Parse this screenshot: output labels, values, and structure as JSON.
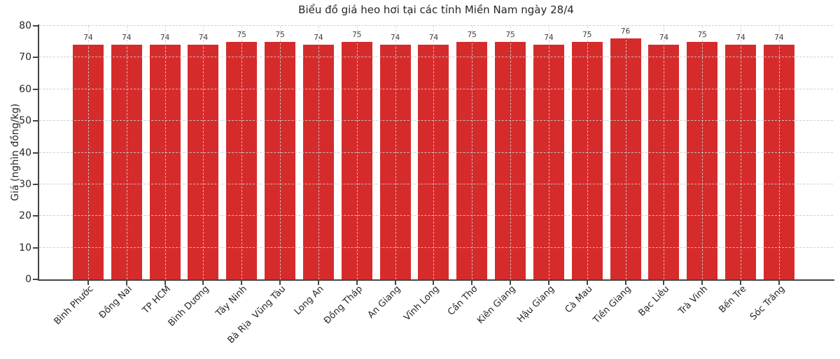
{
  "chart_data": {
    "type": "bar",
    "title": "Biểu đồ giá heo hơi tại các tỉnh Miền Nam ngày 28/4",
    "xlabel": "",
    "ylabel": "Giá (nghìn đồng/kg)",
    "categories": [
      "Bình Phước",
      "Đồng Nai",
      "TP HCM",
      "Bình Dương",
      "Tây Ninh",
      "Bà Rịa  Vũng Tàu",
      "Long An",
      "Đồng Tháp",
      "An Giang",
      "Vĩnh Long",
      "Cần Thơ",
      "Kiên Giang",
      "Hậu Giang",
      "Cà Mau",
      "Tiền Giang",
      "Bạc Liêu",
      "Trà Vinh",
      "Bến Tre",
      "Sóc Trăng"
    ],
    "values": [
      74,
      74,
      74,
      74,
      75,
      75,
      74,
      75,
      74,
      74,
      75,
      75,
      74,
      75,
      76,
      74,
      75,
      74,
      74
    ],
    "ylim": [
      0,
      80
    ],
    "yticks": [
      0,
      10,
      20,
      30,
      40,
      50,
      60,
      70,
      80
    ],
    "x_tick_rotation_deg": 45,
    "grid": {
      "visible": true,
      "style": "dashed",
      "axes": "both"
    },
    "legend": {
      "visible": false
    },
    "bar_value_labels_shown": true,
    "colors": {
      "bar": "#d62b2b",
      "grid": "#cdcdcd",
      "spine": "#454545",
      "title_text": "#262626",
      "tick_text": "#262626",
      "value_label_text": "#3d3d3d",
      "background": "#ffffff"
    }
  }
}
